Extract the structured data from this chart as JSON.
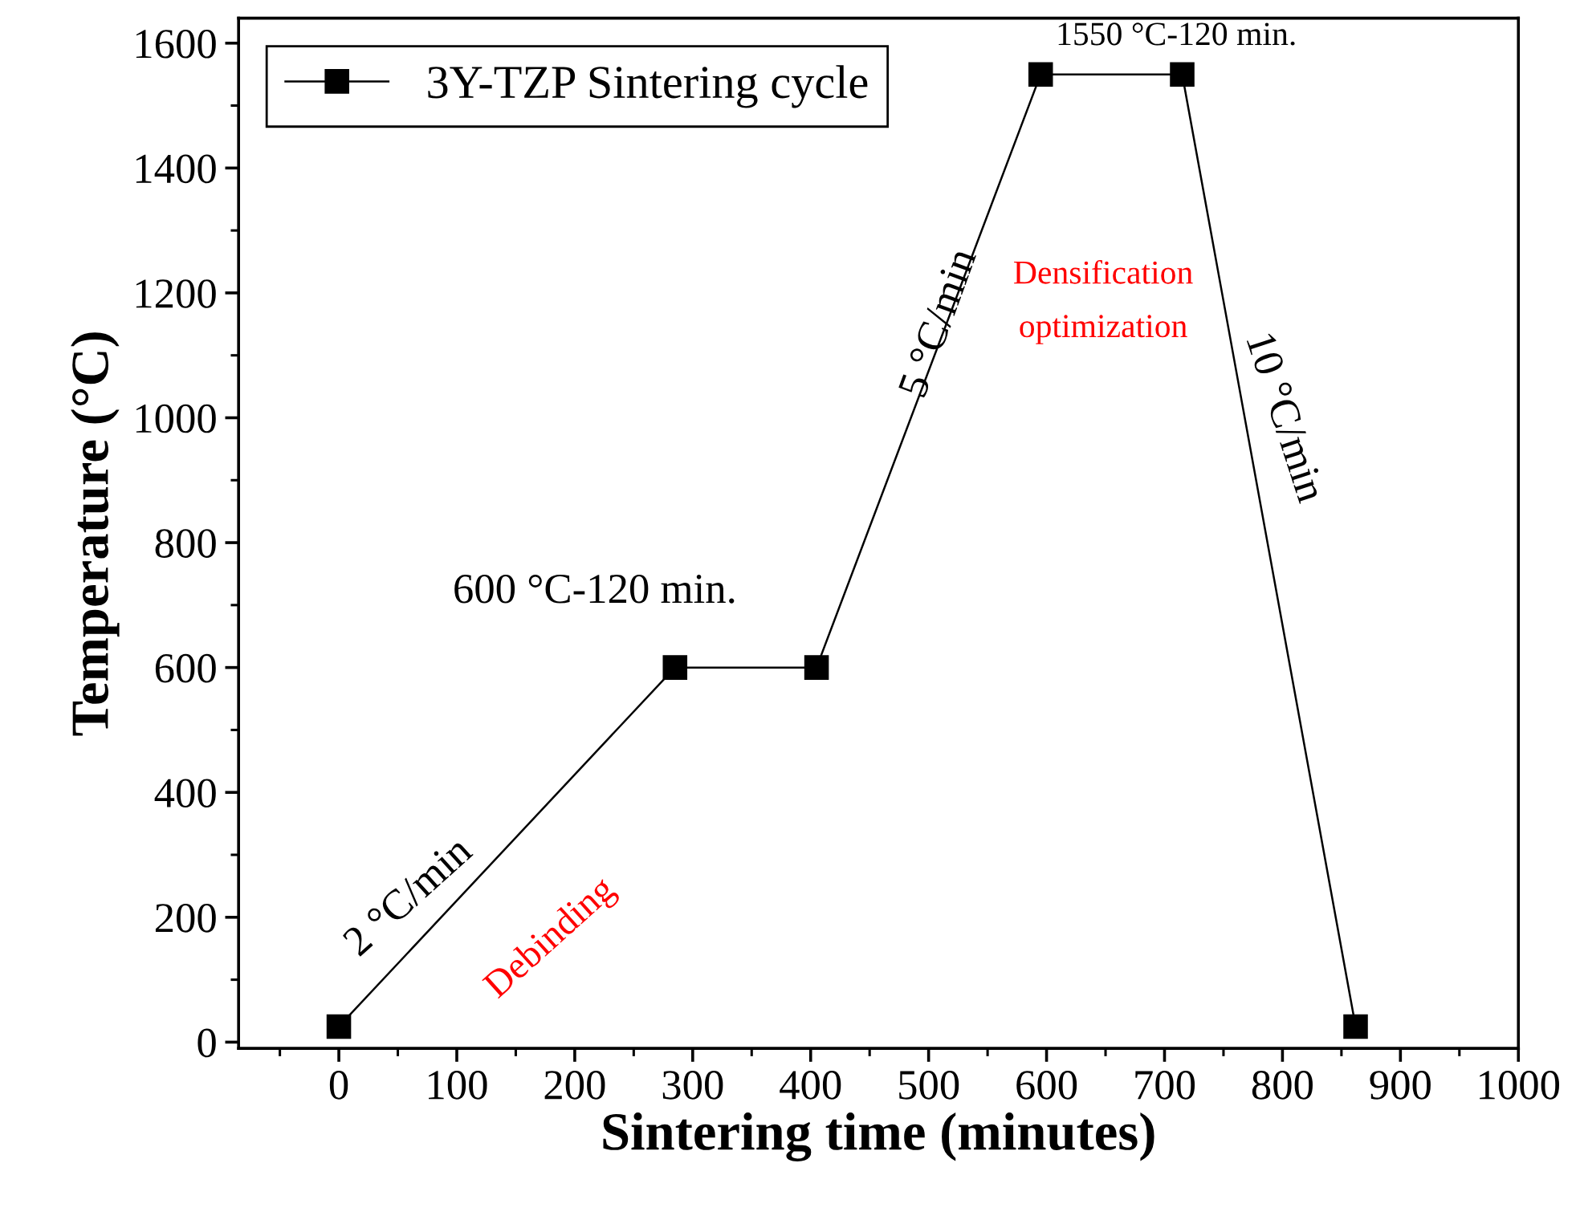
{
  "chart_data": {
    "type": "line",
    "xlabel": "Sintering time (minutes)",
    "ylabel": "Temperature (°C)",
    "x": [
      0,
      285,
      405,
      595,
      715,
      862
    ],
    "series": [
      {
        "name": "3Y-TZP Sintering cycle",
        "color": "#000000",
        "values": [
          25,
          600,
          600,
          1550,
          1550,
          25
        ]
      }
    ],
    "xlim": [
      -85,
      1000
    ],
    "xticks": [
      0,
      100,
      200,
      300,
      400,
      500,
      600,
      700,
      800,
      900,
      1000
    ],
    "ylim": [
      -10,
      1640
    ],
    "yticks": [
      0,
      200,
      400,
      600,
      800,
      1000,
      1200,
      1400,
      1600
    ],
    "annotations": [
      "2 °C/min",
      "Debinding",
      "600 °C-120 min.",
      "5 °C/min",
      "1550 °C-120 min.",
      "Densification\noptimization",
      "10 °C/min"
    ],
    "marker": "square",
    "line_style": "solid",
    "legend": "top left",
    "grid": false
  }
}
